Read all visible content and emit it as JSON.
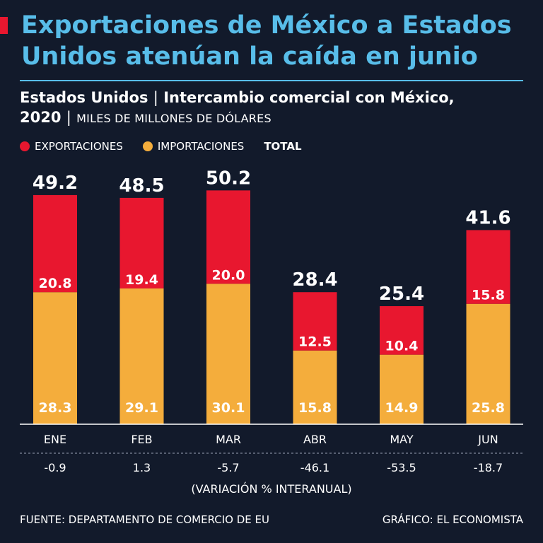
{
  "headline": "Exportaciones de México a Estados Unidos atenúan la caída en junio",
  "subtitle": {
    "main": "Estados Unidos",
    "sep": "|",
    "topic": "Intercambio comercial con México,",
    "year": "2020",
    "units": "MILES DE MILLONES DE DÓLARES"
  },
  "colors": {
    "exports": "#e8172f",
    "imports": "#f4ad3c",
    "accent": "#58bde9",
    "background": "#121a2b"
  },
  "legend": {
    "exports": "EXPORTACIONES",
    "imports": "IMPORTACIONES",
    "total": "TOTAL"
  },
  "chart_data": {
    "type": "bar",
    "stacked": true,
    "categories": [
      "ENE",
      "FEB",
      "MAR",
      "ABR",
      "MAY",
      "JUN"
    ],
    "series": [
      {
        "name": "IMPORTACIONES",
        "values": [
          28.3,
          29.1,
          30.1,
          15.8,
          14.9,
          25.8
        ]
      },
      {
        "name": "EXPORTACIONES",
        "values": [
          20.8,
          19.4,
          20.0,
          12.5,
          10.4,
          15.8
        ]
      }
    ],
    "totals": [
      49.2,
      48.5,
      50.2,
      28.4,
      25.4,
      41.6
    ],
    "variation": [
      -0.9,
      1.3,
      -5.7,
      -46.1,
      -53.5,
      -18.7
    ],
    "variation_label": "(VARIACIÓN % INTERANUAL)",
    "ylim": [
      0,
      50.2
    ],
    "grid": false
  },
  "footer": {
    "source": "FUENTE: DEPARTAMENTO DE COMERCIO DE EU",
    "credit": "GRÁFICO: EL ECONOMISTA"
  }
}
